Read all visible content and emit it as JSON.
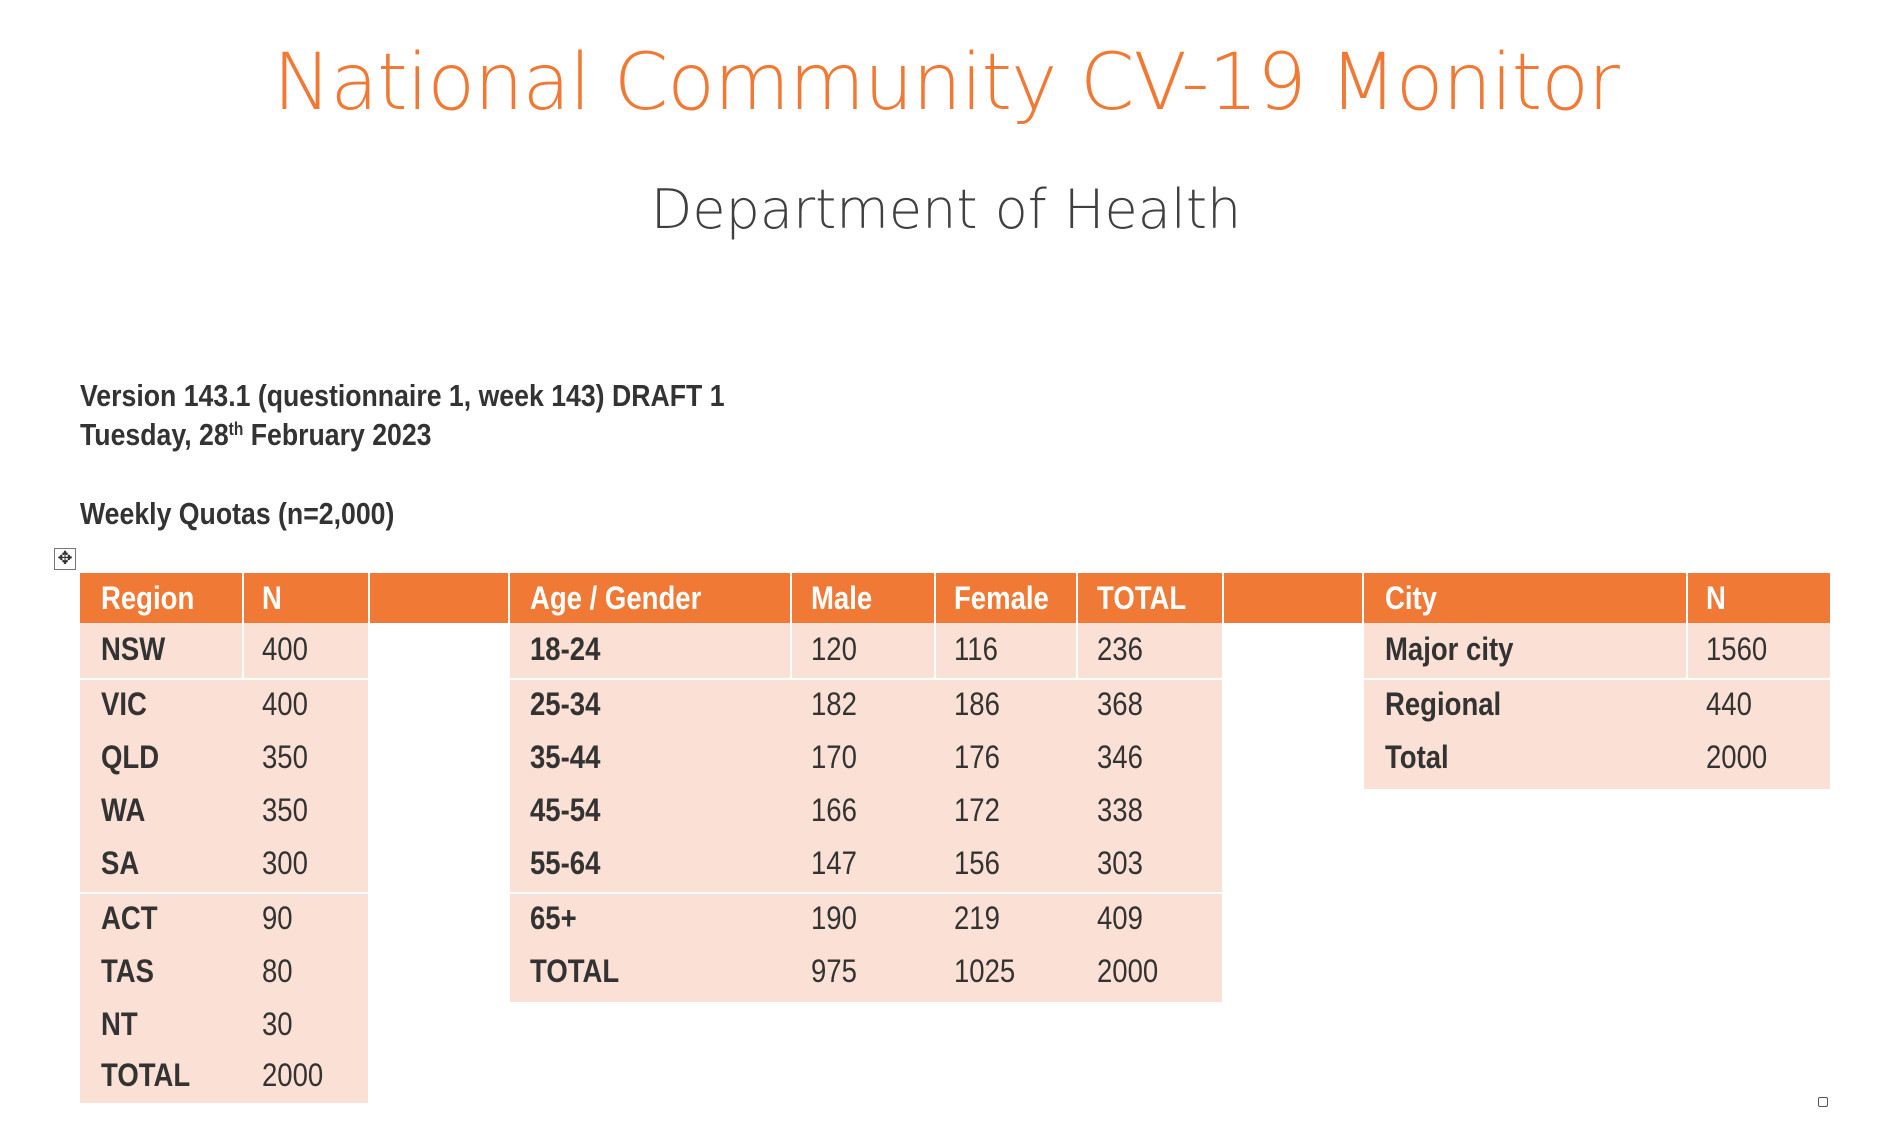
{
  "document": {
    "title": "National Community CV-19 Monitor",
    "subtitle": "Department of Health",
    "version_line": "Version 143.1 (questionnaire 1, week 143) DRAFT 1",
    "date_prefix": "Tuesday, 28",
    "date_sup": "th",
    "date_suffix": " February 2023",
    "quota_heading": "Weekly Quotas (n=2,000)"
  },
  "colors": {
    "accent": "#F07935",
    "row_fill": "#FBE1D5",
    "text": "#333333"
  },
  "icons": {
    "table_move": "move-handle-icon",
    "table_resize": "resize-handle-icon"
  },
  "region_table": {
    "headers": [
      "Region",
      "N"
    ],
    "rows": [
      [
        "NSW",
        "400"
      ],
      [
        "VIC",
        "400"
      ],
      [
        "QLD",
        "350"
      ],
      [
        "WA",
        "350"
      ],
      [
        "SA",
        "300"
      ],
      [
        "ACT",
        "90"
      ],
      [
        "TAS",
        "80"
      ],
      [
        "NT",
        "30"
      ],
      [
        "TOTAL",
        "2000"
      ]
    ]
  },
  "age_table": {
    "headers": [
      "Age / Gender",
      "Male",
      "Female",
      "TOTAL"
    ],
    "rows": [
      [
        "18-24",
        "120",
        "116",
        "236"
      ],
      [
        "25-34",
        "182",
        "186",
        "368"
      ],
      [
        "35-44",
        "170",
        "176",
        "346"
      ],
      [
        "45-54",
        "166",
        "172",
        "338"
      ],
      [
        "55-64",
        "147",
        "156",
        "303"
      ],
      [
        "65+",
        "190",
        "219",
        "409"
      ],
      [
        "TOTAL",
        "975",
        "1025",
        "2000"
      ]
    ]
  },
  "city_table": {
    "headers": [
      "City",
      "N"
    ],
    "rows": [
      [
        "Major city",
        "1560"
      ],
      [
        "Regional",
        "440"
      ],
      [
        "Total",
        "2000"
      ]
    ]
  }
}
